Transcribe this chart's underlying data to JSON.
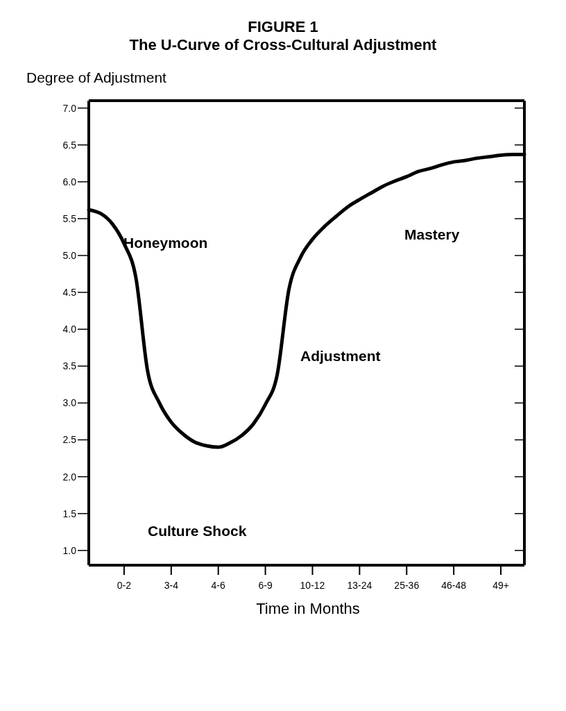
{
  "chart_data": {
    "type": "line",
    "title": "FIGURE 1",
    "subtitle": "The U-Curve of Cross-Cultural Adjustment",
    "ylabel": "Degree of Adjustment",
    "xlabel": "Time in Months",
    "categories": [
      null,
      null,
      null,
      "0-2",
      null,
      null,
      null,
      "3-4",
      null,
      null,
      null,
      "4-6",
      null,
      null,
      null,
      "6-9",
      null,
      null,
      null,
      "10-12",
      null,
      null,
      null,
      "13-24",
      null,
      null,
      null,
      "25-36",
      null,
      null,
      null,
      "46-48",
      null,
      null,
      null,
      "49+",
      null,
      null
    ],
    "series": [
      {
        "color": "#000000",
        "values": [
          5.62,
          5.57,
          5.43,
          5.16,
          4.7,
          3.43,
          3.0,
          2.74,
          2.58,
          2.47,
          2.42,
          2.4,
          2.46,
          2.56,
          2.72,
          2.98,
          3.38,
          4.54,
          4.98,
          5.22,
          5.39,
          5.53,
          5.66,
          5.76,
          5.85,
          5.94,
          6.01,
          6.07,
          6.14,
          6.18,
          6.23,
          6.27,
          6.29,
          6.32,
          6.34,
          6.36,
          6.37,
          6.37
        ]
      }
    ],
    "ylim": [
      0.8,
      7.1
    ],
    "yticks": [
      {
        "value": 1,
        "label": "1.0"
      },
      {
        "value": 1.5,
        "label": "1.5"
      },
      {
        "value": 2,
        "label": "2.0"
      },
      {
        "value": 2.5,
        "label": "2.5"
      },
      {
        "value": 3,
        "label": "3.0"
      },
      {
        "value": 3.5,
        "label": "3.5"
      },
      {
        "value": 4,
        "label": "4.0"
      },
      {
        "value": 4.5,
        "label": "4.5"
      },
      {
        "value": 5,
        "label": "5.0"
      },
      {
        "value": 5.5,
        "label": "5.5"
      },
      {
        "value": 6,
        "label": "6.0"
      },
      {
        "value": 6.5,
        "label": "6.5"
      },
      {
        "value": 7,
        "label": "7.0"
      }
    ],
    "grid": false,
    "legend": false,
    "marker": "none",
    "line_style": "solid",
    "annotations": [
      "Honeymoon",
      "Culture Shock",
      "Adjustment",
      "Mastery"
    ]
  }
}
